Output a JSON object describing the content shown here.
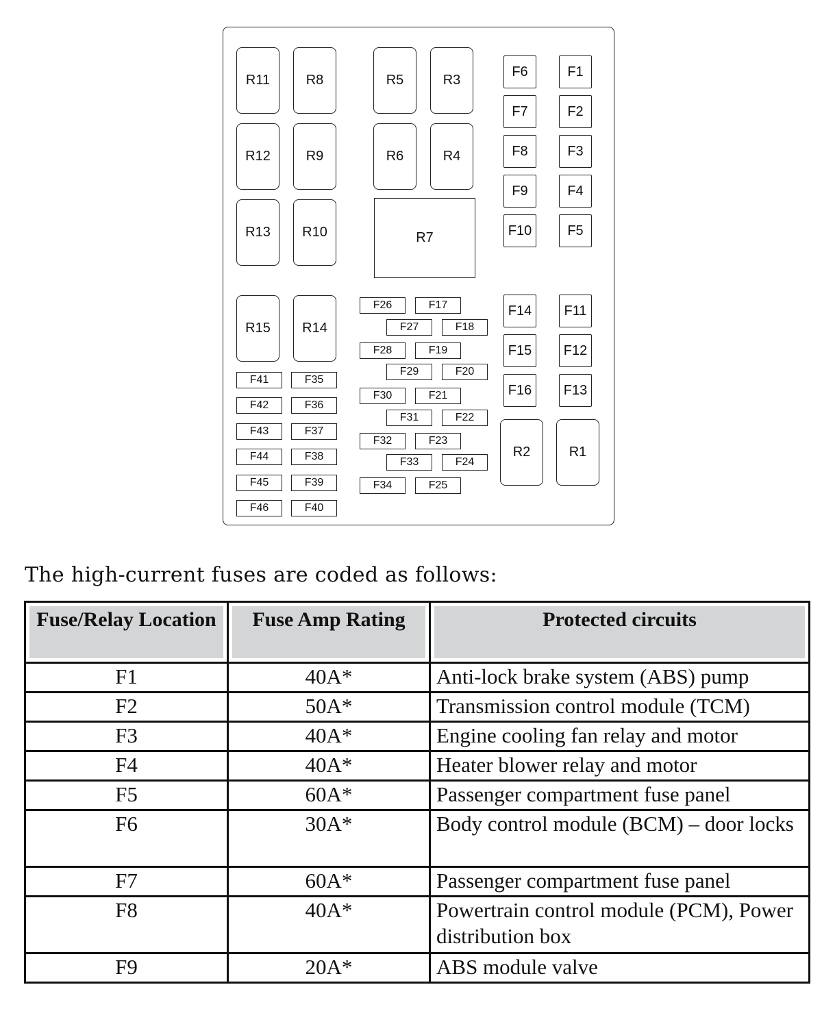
{
  "diagram": {
    "relays": [
      "R11",
      "R8",
      "R5",
      "R3",
      "R12",
      "R9",
      "R6",
      "R4",
      "R13",
      "R10",
      "R7",
      "R15",
      "R14",
      "R2",
      "R1"
    ],
    "large_fuses": [
      "F6",
      "F1",
      "F7",
      "F2",
      "F8",
      "F3",
      "F9",
      "F4",
      "F10",
      "F5",
      "F14",
      "F11",
      "F15",
      "F12",
      "F16",
      "F13"
    ],
    "small_fuses": [
      "F41",
      "F35",
      "F42",
      "F36",
      "F43",
      "F37",
      "F44",
      "F38",
      "F45",
      "F39",
      "F46",
      "F40",
      "F26",
      "F17",
      "F27",
      "F18",
      "F28",
      "F19",
      "F29",
      "F20",
      "F30",
      "F21",
      "F31",
      "F22",
      "F32",
      "F23",
      "F33",
      "F24",
      "F34",
      "F25"
    ]
  },
  "caption": "The high-current fuses are coded as follows:",
  "table": {
    "headers": [
      "Fuse/Relay Location",
      "Fuse Amp Rating",
      "Protected circuits"
    ],
    "rows": [
      [
        "F1",
        "40A*",
        "Anti-lock brake system (ABS) pump"
      ],
      [
        "F2",
        "50A*",
        "Transmission control module (TCM)"
      ],
      [
        "F3",
        "40A*",
        "Engine cooling fan relay and motor"
      ],
      [
        "F4",
        "40A*",
        "Heater blower relay and motor"
      ],
      [
        "F5",
        "60A*",
        "Passenger compartment fuse panel"
      ],
      [
        "F6",
        "30A*",
        "Body control module (BCM) – door locks"
      ],
      [
        "F7",
        "60A*",
        "Passenger compartment fuse panel"
      ],
      [
        "F8",
        "40A*",
        "Powertrain control module (PCM), Power distribution box"
      ],
      [
        "F9",
        "20A*",
        "ABS module valve"
      ]
    ]
  }
}
